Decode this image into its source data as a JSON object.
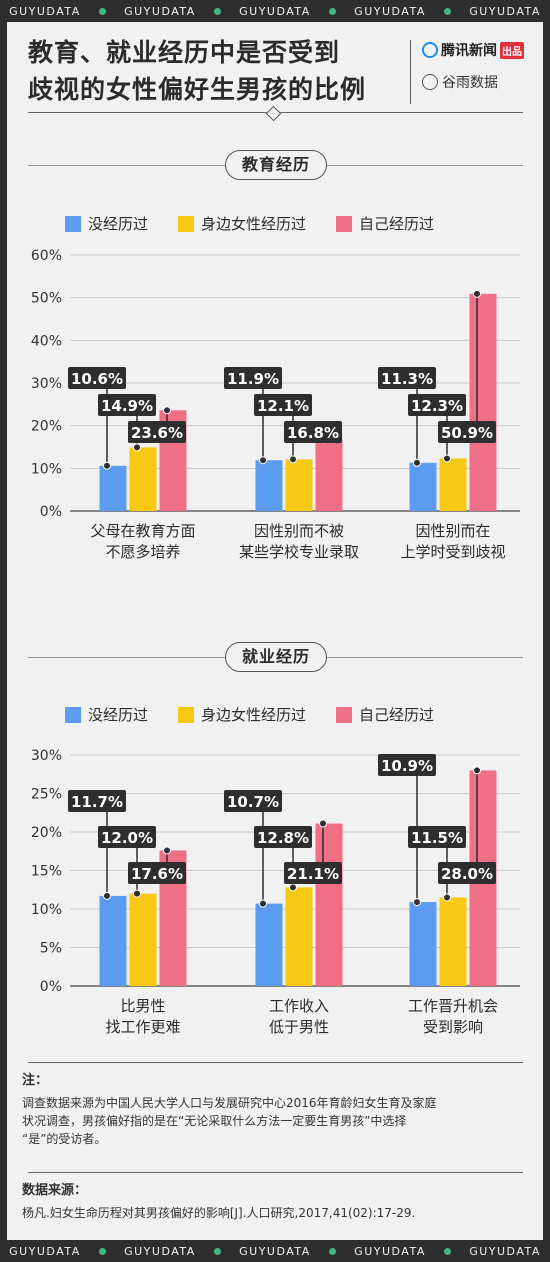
{
  "ticker": {
    "word": "GUYUDATA",
    "repeat": 5
  },
  "header": {
    "title_line1": "教育、就业经历中是否受到",
    "title_line2": "歧视的女性偏好生男孩的比例",
    "brand1": "腾讯新闻",
    "brand1_badge": "出品",
    "brand2": "谷雨数据"
  },
  "legend": [
    {
      "label": "没经历过",
      "color": "#5b9cf0"
    },
    {
      "label": "身边女性经历过",
      "color": "#f7c814"
    },
    {
      "label": "自己经历过",
      "color": "#ef6f86"
    }
  ],
  "sections": [
    {
      "title": "教育经历"
    },
    {
      "title": "就业经历"
    }
  ],
  "chart_data": [
    {
      "type": "bar",
      "title": "教育经历",
      "categories": [
        [
          "父母在教育方面",
          "不愿多培养"
        ],
        [
          "因性别而不被",
          "某些学校专业录取"
        ],
        [
          "因性别而在",
          "上学时受到歧视"
        ]
      ],
      "series": [
        {
          "name": "没经历过",
          "values": [
            10.6,
            11.9,
            11.3
          ]
        },
        {
          "name": "身边女性经历过",
          "values": [
            14.9,
            12.1,
            12.3
          ]
        },
        {
          "name": "自己经历过",
          "values": [
            23.6,
            16.8,
            50.9
          ]
        }
      ],
      "ylim": [
        0,
        60
      ],
      "yticks": [
        0,
        10,
        20,
        30,
        40,
        50,
        60
      ],
      "value_suffix": "%",
      "label_rows": [
        [
          2,
          1,
          0
        ],
        [
          2,
          1,
          0
        ],
        [
          2,
          1,
          0
        ]
      ]
    },
    {
      "type": "bar",
      "title": "就业经历",
      "categories": [
        [
          "比男性",
          "找工作更难"
        ],
        [
          "工作收入",
          "低于男性"
        ],
        [
          "工作晋升机会",
          "受到影响"
        ]
      ],
      "series": [
        {
          "name": "没经历过",
          "values": [
            11.7,
            10.7,
            10.9
          ]
        },
        {
          "name": "身边女性经历过",
          "values": [
            12.0,
            12.8,
            11.5
          ]
        },
        {
          "name": "自己经历过",
          "values": [
            17.6,
            21.1,
            28.0
          ]
        }
      ],
      "ylim": [
        0,
        30
      ],
      "yticks": [
        0,
        5,
        10,
        15,
        20,
        25,
        30
      ],
      "value_suffix": "%",
      "label_rows": [
        [
          2,
          1,
          0
        ],
        [
          2,
          1,
          0
        ],
        [
          3,
          1,
          0
        ]
      ]
    }
  ],
  "notes": {
    "note_heading": "注：",
    "note_text_1": "调查数据来源为中国人民大学人口与发展研究中心2016年育龄妇女生育及家庭",
    "note_text_2": "状况调查，男孩偏好指的是在“无论采取什么方法一定要生育男孩”中选择",
    "note_text_3": "“是”的受访者。",
    "source_heading": "数据来源：",
    "source_text": "杨凡.妇女生命历程对其男孩偏好的影响[J].人口研究,2017,41(02):17-29."
  }
}
